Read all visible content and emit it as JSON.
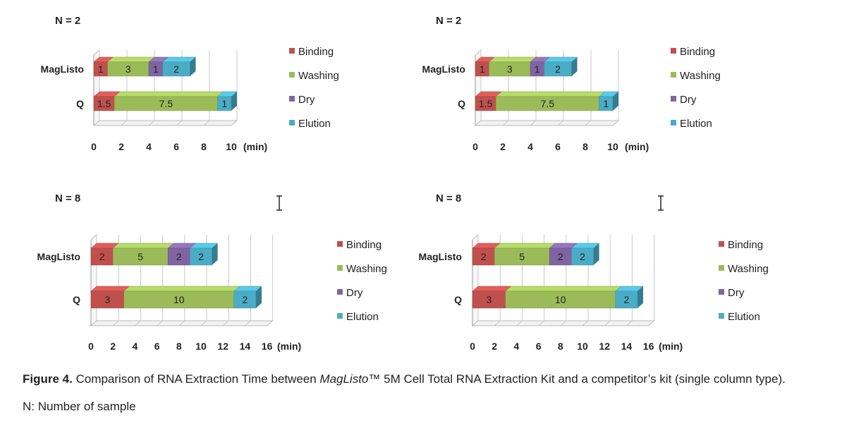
{
  "chart_data": [
    {
      "type": "bar",
      "orientation": "horizontal",
      "stacked": true,
      "title": "N = 2",
      "categories": [
        "MagListo",
        "Q"
      ],
      "series": [
        {
          "name": "Binding",
          "values": [
            1,
            1.5
          ]
        },
        {
          "name": "Washing",
          "values": [
            3,
            7.5
          ]
        },
        {
          "name": "Dry",
          "values": [
            1,
            0
          ]
        },
        {
          "name": "Elution",
          "values": [
            2,
            1
          ]
        }
      ],
      "xlim": [
        0,
        10
      ],
      "xticks": [
        "0",
        "2",
        "4",
        "6",
        "8",
        "10"
      ],
      "unit_label": "(min)",
      "grid": true,
      "legend_position": "right"
    },
    {
      "type": "bar",
      "orientation": "horizontal",
      "stacked": true,
      "title": "N = 2",
      "categories": [
        "MagListo",
        "Q"
      ],
      "series": [
        {
          "name": "Binding",
          "values": [
            1,
            1.5
          ]
        },
        {
          "name": "Washing",
          "values": [
            3,
            7.5
          ]
        },
        {
          "name": "Dry",
          "values": [
            1,
            0
          ]
        },
        {
          "name": "Elution",
          "values": [
            2,
            1
          ]
        }
      ],
      "xlim": [
        0,
        10
      ],
      "xticks": [
        "0",
        "2",
        "4",
        "6",
        "8",
        "10"
      ],
      "unit_label": "(min)",
      "grid": true,
      "legend_position": "right"
    },
    {
      "type": "bar",
      "orientation": "horizontal",
      "stacked": true,
      "title": "N = 8",
      "categories": [
        "MagListo",
        "Q"
      ],
      "series": [
        {
          "name": "Binding",
          "values": [
            2,
            3
          ]
        },
        {
          "name": "Washing",
          "values": [
            5,
            10
          ]
        },
        {
          "name": "Dry",
          "values": [
            2,
            0
          ]
        },
        {
          "name": "Elution",
          "values": [
            2,
            2
          ]
        }
      ],
      "xlim": [
        0,
        16
      ],
      "xticks": [
        "0",
        "2",
        "4",
        "6",
        "8",
        "10",
        "12",
        "14",
        "16"
      ],
      "unit_label": "(min)",
      "grid": true,
      "legend_position": "right"
    },
    {
      "type": "bar",
      "orientation": "horizontal",
      "stacked": true,
      "title": "N = 8",
      "categories": [
        "MagListo",
        "Q"
      ],
      "series": [
        {
          "name": "Binding",
          "values": [
            2,
            3
          ]
        },
        {
          "name": "Washing",
          "values": [
            5,
            10
          ]
        },
        {
          "name": "Dry",
          "values": [
            2,
            0
          ]
        },
        {
          "name": "Elution",
          "values": [
            2,
            2
          ]
        }
      ],
      "xlim": [
        0,
        16
      ],
      "xticks": [
        "0",
        "2",
        "4",
        "6",
        "8",
        "10",
        "12",
        "14",
        "16"
      ],
      "unit_label": "(min)",
      "grid": true,
      "legend_position": "right"
    }
  ],
  "colors": {
    "Binding": "#c0504d",
    "Washing": "#9bbb59",
    "Dry": "#8064a2",
    "Elution": "#4bacc6"
  },
  "caption": {
    "label": "Figure 4.",
    "part1": " Comparison of RNA Extraction Time between ",
    "brand": "MagListo",
    "part2": "™ 5M Cell Total RNA Extraction Kit and a competitor’s kit (single column type)."
  },
  "note": "N: Number of sample"
}
